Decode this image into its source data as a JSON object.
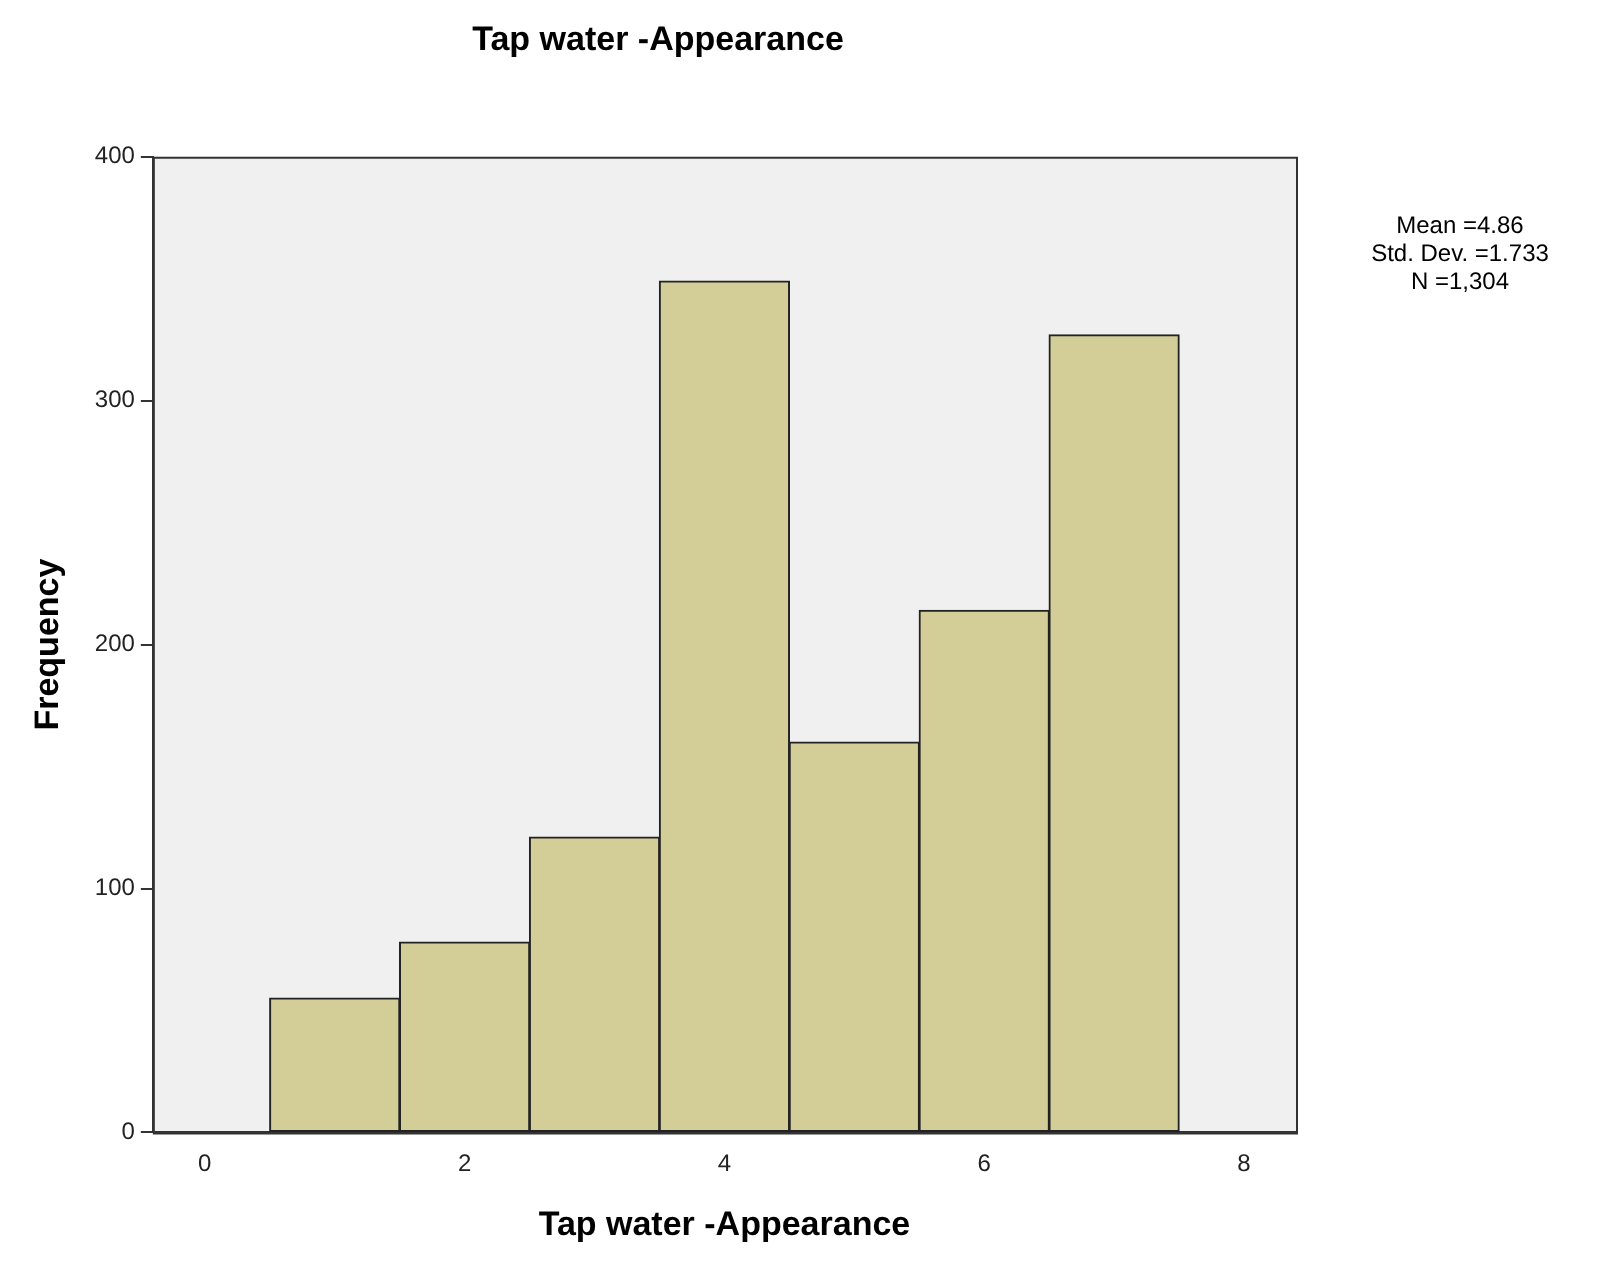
{
  "chart_data": {
    "type": "histogram",
    "title": "Tap water -Appearance",
    "xlabel": "Tap water -Appearance",
    "ylabel": "Frequency",
    "bins": [
      0.5,
      1.5,
      2.5,
      3.5,
      4.5,
      5.5,
      6.5,
      7.5
    ],
    "values": [
      55,
      78,
      121,
      349,
      160,
      214,
      327
    ],
    "color": "#d3ce97",
    "xlim": [
      -0.4,
      8.4
    ],
    "xticks": [
      0,
      2,
      4,
      6,
      8
    ],
    "ylim": [
      0,
      400
    ],
    "yticks": [
      0,
      100,
      200,
      300,
      400
    ],
    "grid": false,
    "legend": false,
    "annotations": [
      "Mean =4.86",
      "Std. Dev. =1.733",
      "N =1,304"
    ]
  }
}
